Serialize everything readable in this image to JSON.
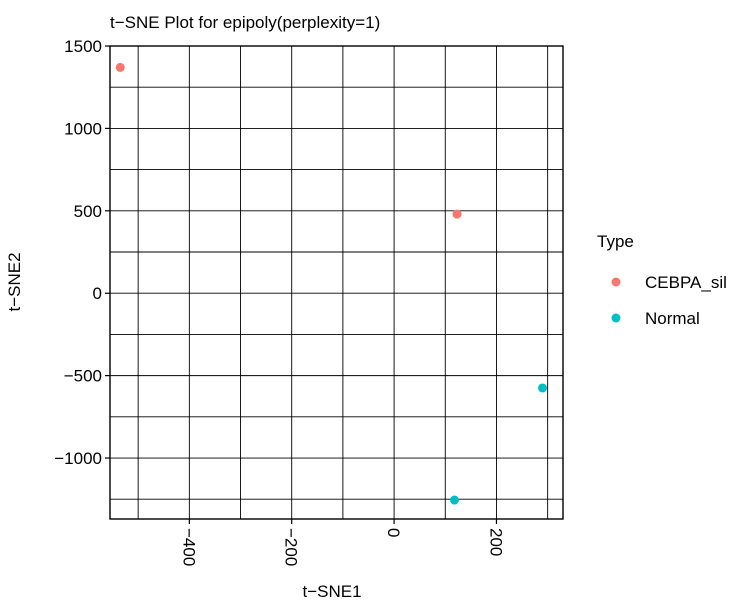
{
  "chart_data": {
    "type": "scatter",
    "title": "t−SNE Plot for epipoly(perplexity=1)",
    "xlabel": "t−SNE1",
    "ylabel": "t−SNE2",
    "xlim": [
      -555,
      330
    ],
    "ylim": [
      -1370,
      1500
    ],
    "xticks": [
      {
        "value": -400,
        "label": "−400"
      },
      {
        "value": -200,
        "label": "−200"
      },
      {
        "value": 0,
        "label": "0"
      },
      {
        "value": 200,
        "label": "200"
      }
    ],
    "yticks": [
      {
        "value": 1500,
        "label": "1500"
      },
      {
        "value": 1000,
        "label": "1000"
      },
      {
        "value": 500,
        "label": "500"
      },
      {
        "value": 0,
        "label": "0"
      },
      {
        "value": -500,
        "label": "−500"
      },
      {
        "value": -1000,
        "label": "−1000"
      }
    ],
    "grid": true,
    "legend": {
      "title": "Type",
      "placement": "right"
    },
    "series": [
      {
        "name": "CEBPA_sil",
        "color": "#F8766D",
        "points": [
          {
            "x": -535,
            "y": 1370
          },
          {
            "x": 123,
            "y": 480
          }
        ]
      },
      {
        "name": "Normal",
        "color": "#00BFC4",
        "points": [
          {
            "x": 290,
            "y": -575
          },
          {
            "x": 118,
            "y": -1255
          }
        ]
      }
    ]
  }
}
